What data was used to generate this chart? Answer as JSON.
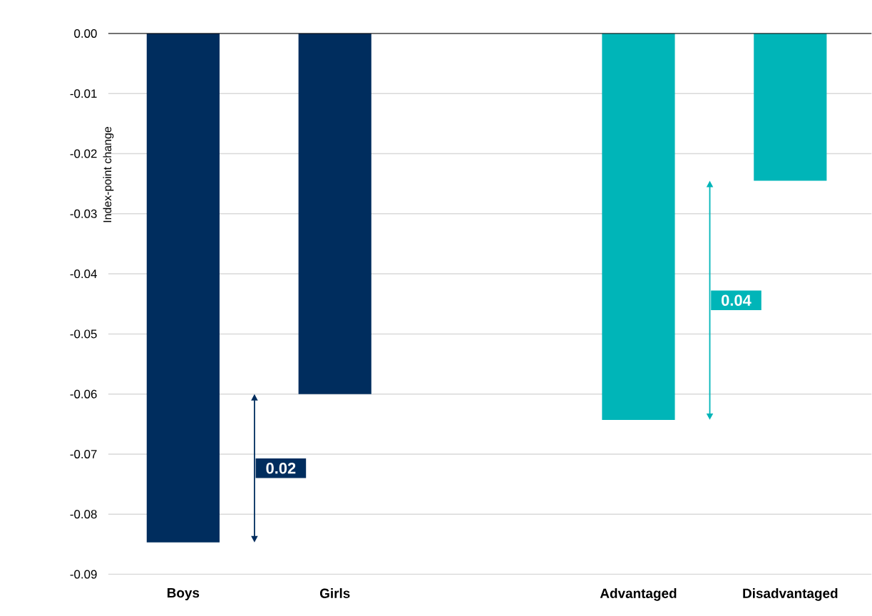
{
  "chart_data": {
    "type": "bar",
    "ylabel": "Index-point change",
    "categories": [
      "Boys",
      "Girls",
      null,
      "Advantaged",
      "Disadvantaged"
    ],
    "values": [
      -0.0847,
      -0.06,
      null,
      -0.0643,
      -0.0245
    ],
    "colors": [
      "#002d5e",
      "#002d5e",
      null,
      "#00b5b8",
      "#00b5b8"
    ],
    "ylim": [
      -0.09,
      0
    ],
    "yticks": [
      {
        "value": 0,
        "label": "0.00"
      },
      -0.01,
      -0.02,
      -0.03,
      -0.04,
      -0.05,
      -0.06,
      -0.07,
      -0.08,
      -0.09
    ],
    "grid": "y",
    "annotations": [
      "0.02",
      "0.04"
    ]
  }
}
